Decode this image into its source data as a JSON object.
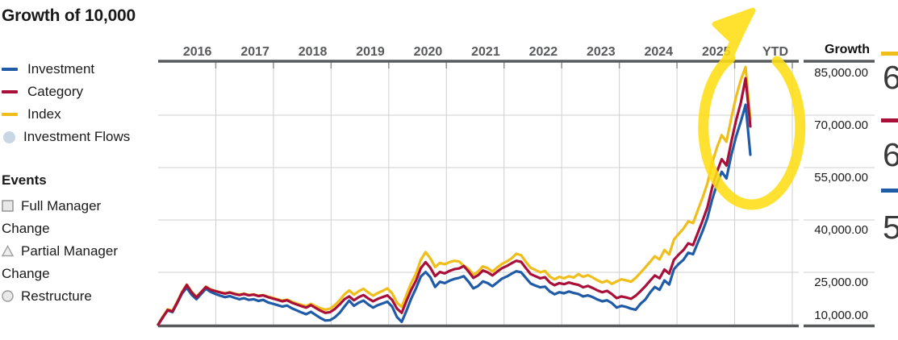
{
  "title": "Growth of 10,000",
  "legend": {
    "items": [
      {
        "label": "Investment",
        "color": "#1f5ba7",
        "swatch": "line"
      },
      {
        "label": "Category",
        "color": "#a81039",
        "swatch": "line"
      },
      {
        "label": "Index",
        "color": "#f0be1a",
        "swatch": "line"
      },
      {
        "label": "Investment Flows",
        "color": "#c9d6e6",
        "swatch": "circle"
      }
    ]
  },
  "events": {
    "title": "Events",
    "items": [
      {
        "label": "Full Manager Change",
        "marker": "square"
      },
      {
        "label": "Partial Manager Change",
        "marker": "triangle"
      },
      {
        "label": "Restructure",
        "marker": "circle"
      }
    ]
  },
  "growth_column": {
    "header": "Growth"
  },
  "right_edge_panel": {
    "entries": [
      {
        "series": "Index",
        "color": "#f0be1a",
        "partial_value": "6"
      },
      {
        "series": "Category",
        "color": "#a81039",
        "partial_value": "6"
      },
      {
        "series": "Investment",
        "color": "#1f5ba7",
        "partial_value": "5"
      }
    ]
  },
  "annotation": {
    "shape": "hand-drawn circle with arrow",
    "color": "#ffde14",
    "target": "2025 peak spike"
  },
  "chart_data": {
    "type": "line",
    "title": "Growth of 10,000",
    "x_labels": [
      "2016",
      "2017",
      "2018",
      "2019",
      "2020",
      "2021",
      "2022",
      "2023",
      "2024",
      "2025",
      "YTD"
    ],
    "x_start": "2016-01",
    "x_frequency": "monthly",
    "ylim": [
      10000,
      85000
    ],
    "y_ticks": [
      85000,
      70000,
      55000,
      40000,
      25000,
      10000
    ],
    "y_tick_labels": [
      "85,000.00",
      "70,000.00",
      "55,000.00",
      "40,000.00",
      "25,000.00",
      "10,000.00"
    ],
    "grid": true,
    "legend_position": "left",
    "series": [
      {
        "name": "Investment",
        "color": "#1f5ba7",
        "z": 2,
        "values": [
          10000,
          12200,
          14100,
          13600,
          16200,
          18900,
          20600,
          18600,
          17300,
          18800,
          20300,
          19400,
          18800,
          18300,
          17900,
          18200,
          17700,
          17300,
          17600,
          17100,
          17300,
          16800,
          17100,
          16400,
          16000,
          15600,
          15200,
          15500,
          14700,
          14100,
          13500,
          13000,
          13700,
          12800,
          11900,
          11200,
          11300,
          12100,
          13400,
          15200,
          16900,
          15400,
          16300,
          16900,
          15800,
          14900,
          15600,
          16100,
          16600,
          15200,
          12200,
          10800,
          14000,
          17500,
          20400,
          23800,
          25100,
          23600,
          20800,
          22300,
          21900,
          22600,
          23100,
          23400,
          23900,
          22300,
          20400,
          21100,
          22400,
          21900,
          21000,
          22100,
          23200,
          23800,
          24600,
          25300,
          25000,
          23400,
          21800,
          21200,
          20700,
          20900,
          19500,
          18700,
          19300,
          19000,
          19500,
          19100,
          18800,
          18100,
          18400,
          17900,
          17200,
          16700,
          17000,
          16200,
          14900,
          15400,
          15100,
          14600,
          14300,
          16000,
          17200,
          19200,
          20800,
          20000,
          22700,
          21500,
          25900,
          27400,
          28600,
          30600,
          30200,
          33500,
          36800,
          40500,
          45800,
          50200,
          53800,
          51900,
          58500,
          63800,
          68200,
          73000,
          58700
        ]
      },
      {
        "name": "Category",
        "color": "#a81039",
        "z": 3,
        "values": [
          10000,
          12100,
          14200,
          13800,
          16400,
          19200,
          21400,
          19300,
          17800,
          19300,
          20800,
          20000,
          19600,
          19200,
          18900,
          19200,
          18800,
          18500,
          18800,
          18400,
          18600,
          18200,
          18400,
          17900,
          17500,
          17100,
          16700,
          17000,
          16300,
          15800,
          15300,
          14900,
          15600,
          14800,
          14000,
          13400,
          13600,
          14500,
          15800,
          17300,
          18100,
          17000,
          17900,
          18500,
          17500,
          16700,
          17400,
          17900,
          18400,
          17100,
          14600,
          13400,
          16800,
          20000,
          22600,
          26200,
          27900,
          26300,
          23900,
          25100,
          24700,
          25400,
          25900,
          26100,
          26800,
          25200,
          23400,
          24200,
          25500,
          25000,
          24100,
          25200,
          26200,
          26800,
          27600,
          28300,
          28000,
          26200,
          24500,
          23900,
          23300,
          23600,
          22100,
          21300,
          21900,
          21600,
          22100,
          21700,
          21400,
          20700,
          21100,
          20500,
          19800,
          19300,
          19700,
          18800,
          17600,
          18100,
          17800,
          17400,
          18300,
          19600,
          21000,
          22600,
          24100,
          23300,
          25800,
          24600,
          28600,
          30100,
          31400,
          33300,
          32800,
          36300,
          39800,
          43600,
          49200,
          53800,
          57400,
          55600,
          62300,
          68400,
          73600,
          80600,
          66800
        ]
      },
      {
        "name": "Index",
        "color": "#f0be1a",
        "z": 1,
        "values": [
          10100,
          12400,
          14400,
          14000,
          16600,
          19400,
          21500,
          19500,
          18000,
          19400,
          20900,
          20100,
          19700,
          19300,
          19000,
          19300,
          18900,
          18600,
          18900,
          18500,
          18700,
          18300,
          18500,
          18000,
          17700,
          17300,
          16900,
          17200,
          16600,
          16100,
          15700,
          15300,
          16000,
          15300,
          14700,
          14300,
          14600,
          15600,
          17000,
          18700,
          19800,
          18600,
          19600,
          20300,
          19200,
          18300,
          19100,
          19700,
          20400,
          19000,
          16300,
          15100,
          18600,
          21900,
          24600,
          28600,
          30800,
          29000,
          26500,
          27700,
          27300,
          27900,
          28300,
          28100,
          26900,
          26000,
          24300,
          25200,
          26700,
          26200,
          25200,
          26400,
          27400,
          28100,
          29000,
          30300,
          29900,
          28000,
          26300,
          25700,
          25000,
          25400,
          23800,
          23000,
          23700,
          23300,
          23900,
          23500,
          24500,
          23700,
          24200,
          23500,
          22700,
          22100,
          22600,
          21700,
          22400,
          23000,
          22700,
          22300,
          23400,
          24900,
          26400,
          28000,
          29600,
          28700,
          31400,
          30100,
          34400,
          36000,
          37500,
          39600,
          39100,
          42800,
          46400,
          50400,
          56200,
          60800,
          64300,
          62400,
          69100,
          75200,
          80100,
          83800,
          68800
        ]
      }
    ]
  }
}
